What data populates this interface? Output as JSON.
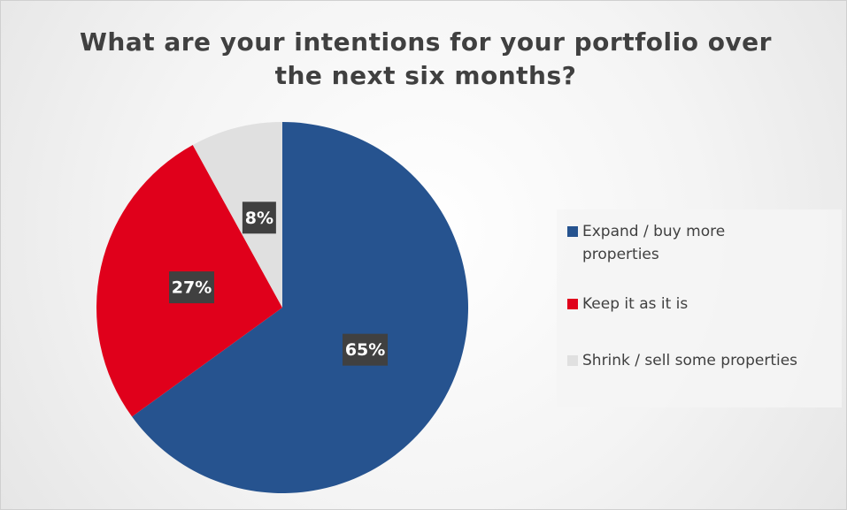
{
  "chart_data": {
    "type": "pie",
    "title": "What are your intentions for your portfolio over the next six months?",
    "categories": [
      "Expand / buy more properties",
      "Keep it as it is",
      "Shrink / sell some properties"
    ],
    "values": [
      65,
      27,
      8
    ],
    "value_labels": [
      "65%",
      "27%",
      "8%"
    ],
    "colors": [
      "#26538f",
      "#e0001b",
      "#e0e0e0"
    ],
    "legend": "right"
  }
}
